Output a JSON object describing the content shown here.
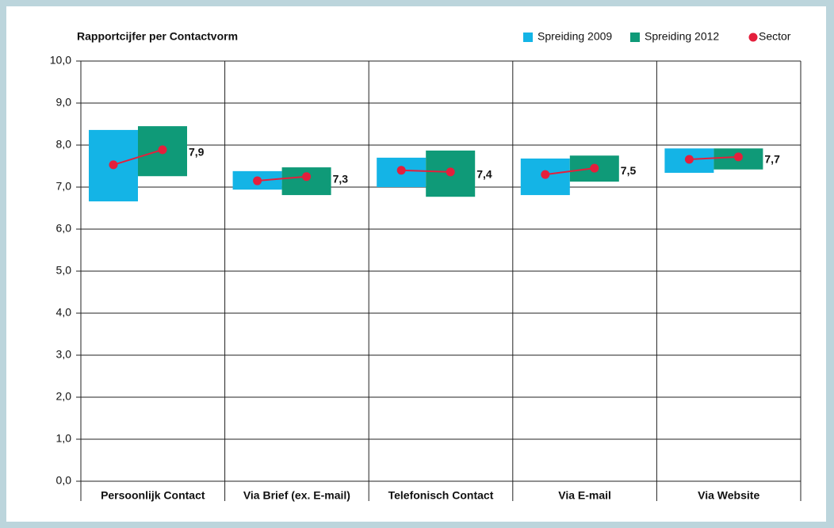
{
  "chart_data": {
    "type": "range_bar",
    "title": "Rapportcijfer per Contactvorm",
    "categories": [
      "Persoonlijk Contact",
      "Via Brief (ex. E-mail)",
      "Telefonisch Contact",
      "Via E-mail",
      "Via Website"
    ],
    "series": [
      {
        "name": "Spreiding 2009",
        "color": "#14b4e6",
        "low": [
          6.66,
          6.94,
          7.0,
          6.81,
          7.34
        ],
        "high": [
          8.36,
          7.38,
          7.7,
          7.68,
          7.92
        ]
      },
      {
        "name": "Spreiding 2012",
        "color": "#0f9a78",
        "low": [
          7.26,
          6.81,
          6.77,
          7.13,
          7.42
        ],
        "high": [
          8.45,
          7.47,
          7.87,
          7.75,
          7.92
        ]
      },
      {
        "name": "Sector",
        "color": "#e41f3c",
        "values": [
          [
            7.53,
            7.89
          ],
          [
            7.15,
            7.25
          ],
          [
            7.4,
            7.36
          ],
          [
            7.3,
            7.45
          ],
          [
            7.66,
            7.72
          ]
        ],
        "value_labels": [
          "7,9",
          "7,3",
          "7,4",
          "7,5",
          "7,7"
        ]
      }
    ],
    "ylim": [
      0,
      10
    ],
    "yticks": [
      {
        "value": 0,
        "label": "0,0"
      },
      {
        "value": 1,
        "label": "1,0"
      },
      {
        "value": 2,
        "label": "2,0"
      },
      {
        "value": 3,
        "label": "3,0"
      },
      {
        "value": 4,
        "label": "4,0"
      },
      {
        "value": 5,
        "label": "5,0"
      },
      {
        "value": 6,
        "label": "6,0"
      },
      {
        "value": 7,
        "label": "7,0"
      },
      {
        "value": 8,
        "label": "8,0"
      },
      {
        "value": 9,
        "label": "9,0"
      },
      {
        "value": 10,
        "label": "10,0"
      }
    ],
    "grid": true
  }
}
